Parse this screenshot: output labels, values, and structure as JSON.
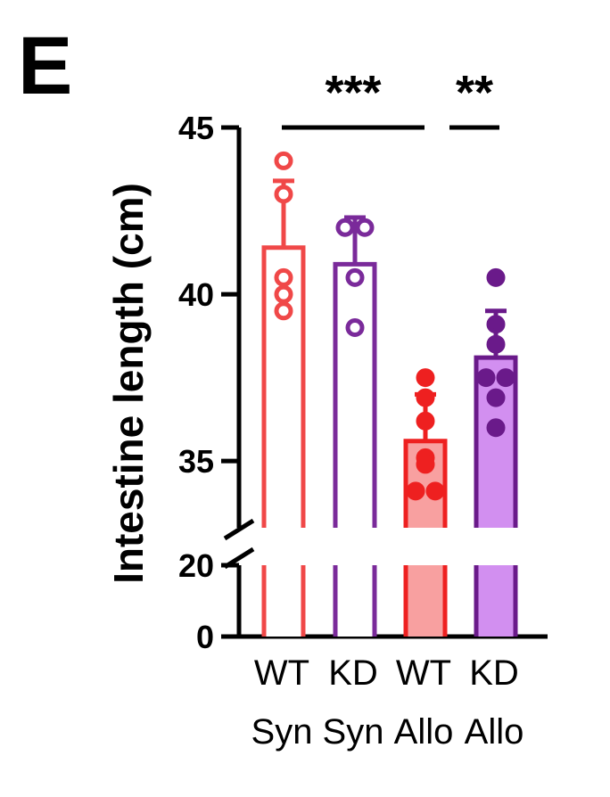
{
  "panel_label": "E",
  "chart_data": {
    "type": "bar",
    "ylabel": "Intestine length (cm)",
    "yaxis": {
      "broken": true,
      "lower_segment": [
        0,
        20
      ],
      "upper_segment": [
        33,
        45
      ],
      "ticks": [
        "0",
        "20",
        "35",
        "40",
        "45"
      ]
    },
    "categories": [
      {
        "line1": "WT",
        "line2": "Syn"
      },
      {
        "line1": "KD",
        "line2": "Syn"
      },
      {
        "line1": "WT",
        "line2": "Allo"
      },
      {
        "line1": "KD",
        "line2": "Allo"
      }
    ],
    "series": [
      {
        "mean": 41.4,
        "sd": 2.0,
        "points": [
          44.0,
          43.0,
          40.5,
          40.0,
          39.5
        ],
        "color": "#f04848",
        "fill": "#ffffff",
        "filled_points": false
      },
      {
        "mean": 40.9,
        "sd": 1.4,
        "points": [
          42.0,
          42.0,
          40.5,
          39.0
        ],
        "color": "#7a2a9a",
        "fill": "#ffffff",
        "filled_points": false
      },
      {
        "mean": 35.6,
        "sd": 1.4,
        "points": [
          37.5,
          36.9,
          36.2,
          35.1,
          34.9,
          34.1,
          34.1
        ],
        "color": "#ee2020",
        "fill": "#f8a0a0",
        "filled_points": true
      },
      {
        "mean": 38.1,
        "sd": 1.4,
        "points": [
          40.5,
          39.1,
          38.5,
          37.5,
          37.5,
          36.9,
          36.0
        ],
        "color": "#6a1a8a",
        "fill": "#d28ff0",
        "filled_points": true
      }
    ],
    "significance": [
      {
        "from": 0,
        "to": 2,
        "label": "***"
      },
      {
        "from": 2,
        "to": 3,
        "label": "**"
      }
    ],
    "grid": false,
    "legend": "none"
  }
}
